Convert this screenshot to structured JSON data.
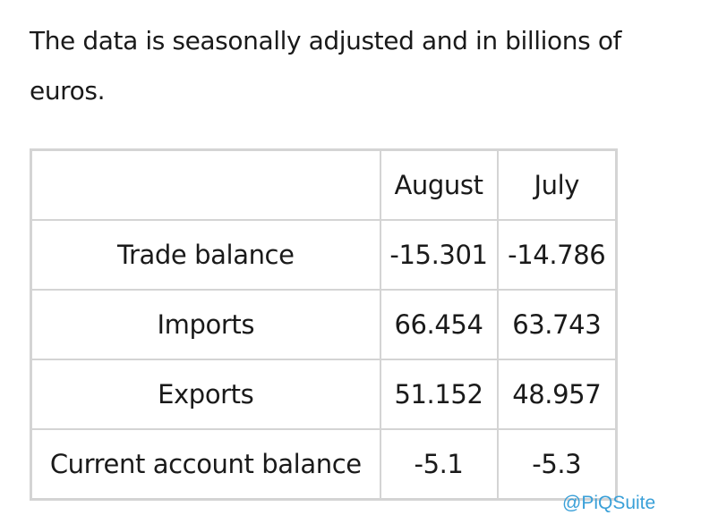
{
  "intro_text": "The data is seasonally adjusted and in billions of euros.",
  "table": {
    "headers": [
      "",
      "August",
      "July"
    ],
    "rows": [
      {
        "label": "Trade balance",
        "august": "-15.301",
        "july": "-14.786"
      },
      {
        "label": "Imports",
        "august": "66.454",
        "july": "63.743"
      },
      {
        "label": "Exports",
        "august": "51.152",
        "july": "48.957"
      },
      {
        "label": "Current account balance",
        "august": "-5.1",
        "july": "-5.3"
      }
    ]
  },
  "watermark": "@PiQSuite",
  "colors": {
    "border": "#d4d4d4",
    "text": "#1a1a1a",
    "watermark": "#3aa0d8"
  }
}
